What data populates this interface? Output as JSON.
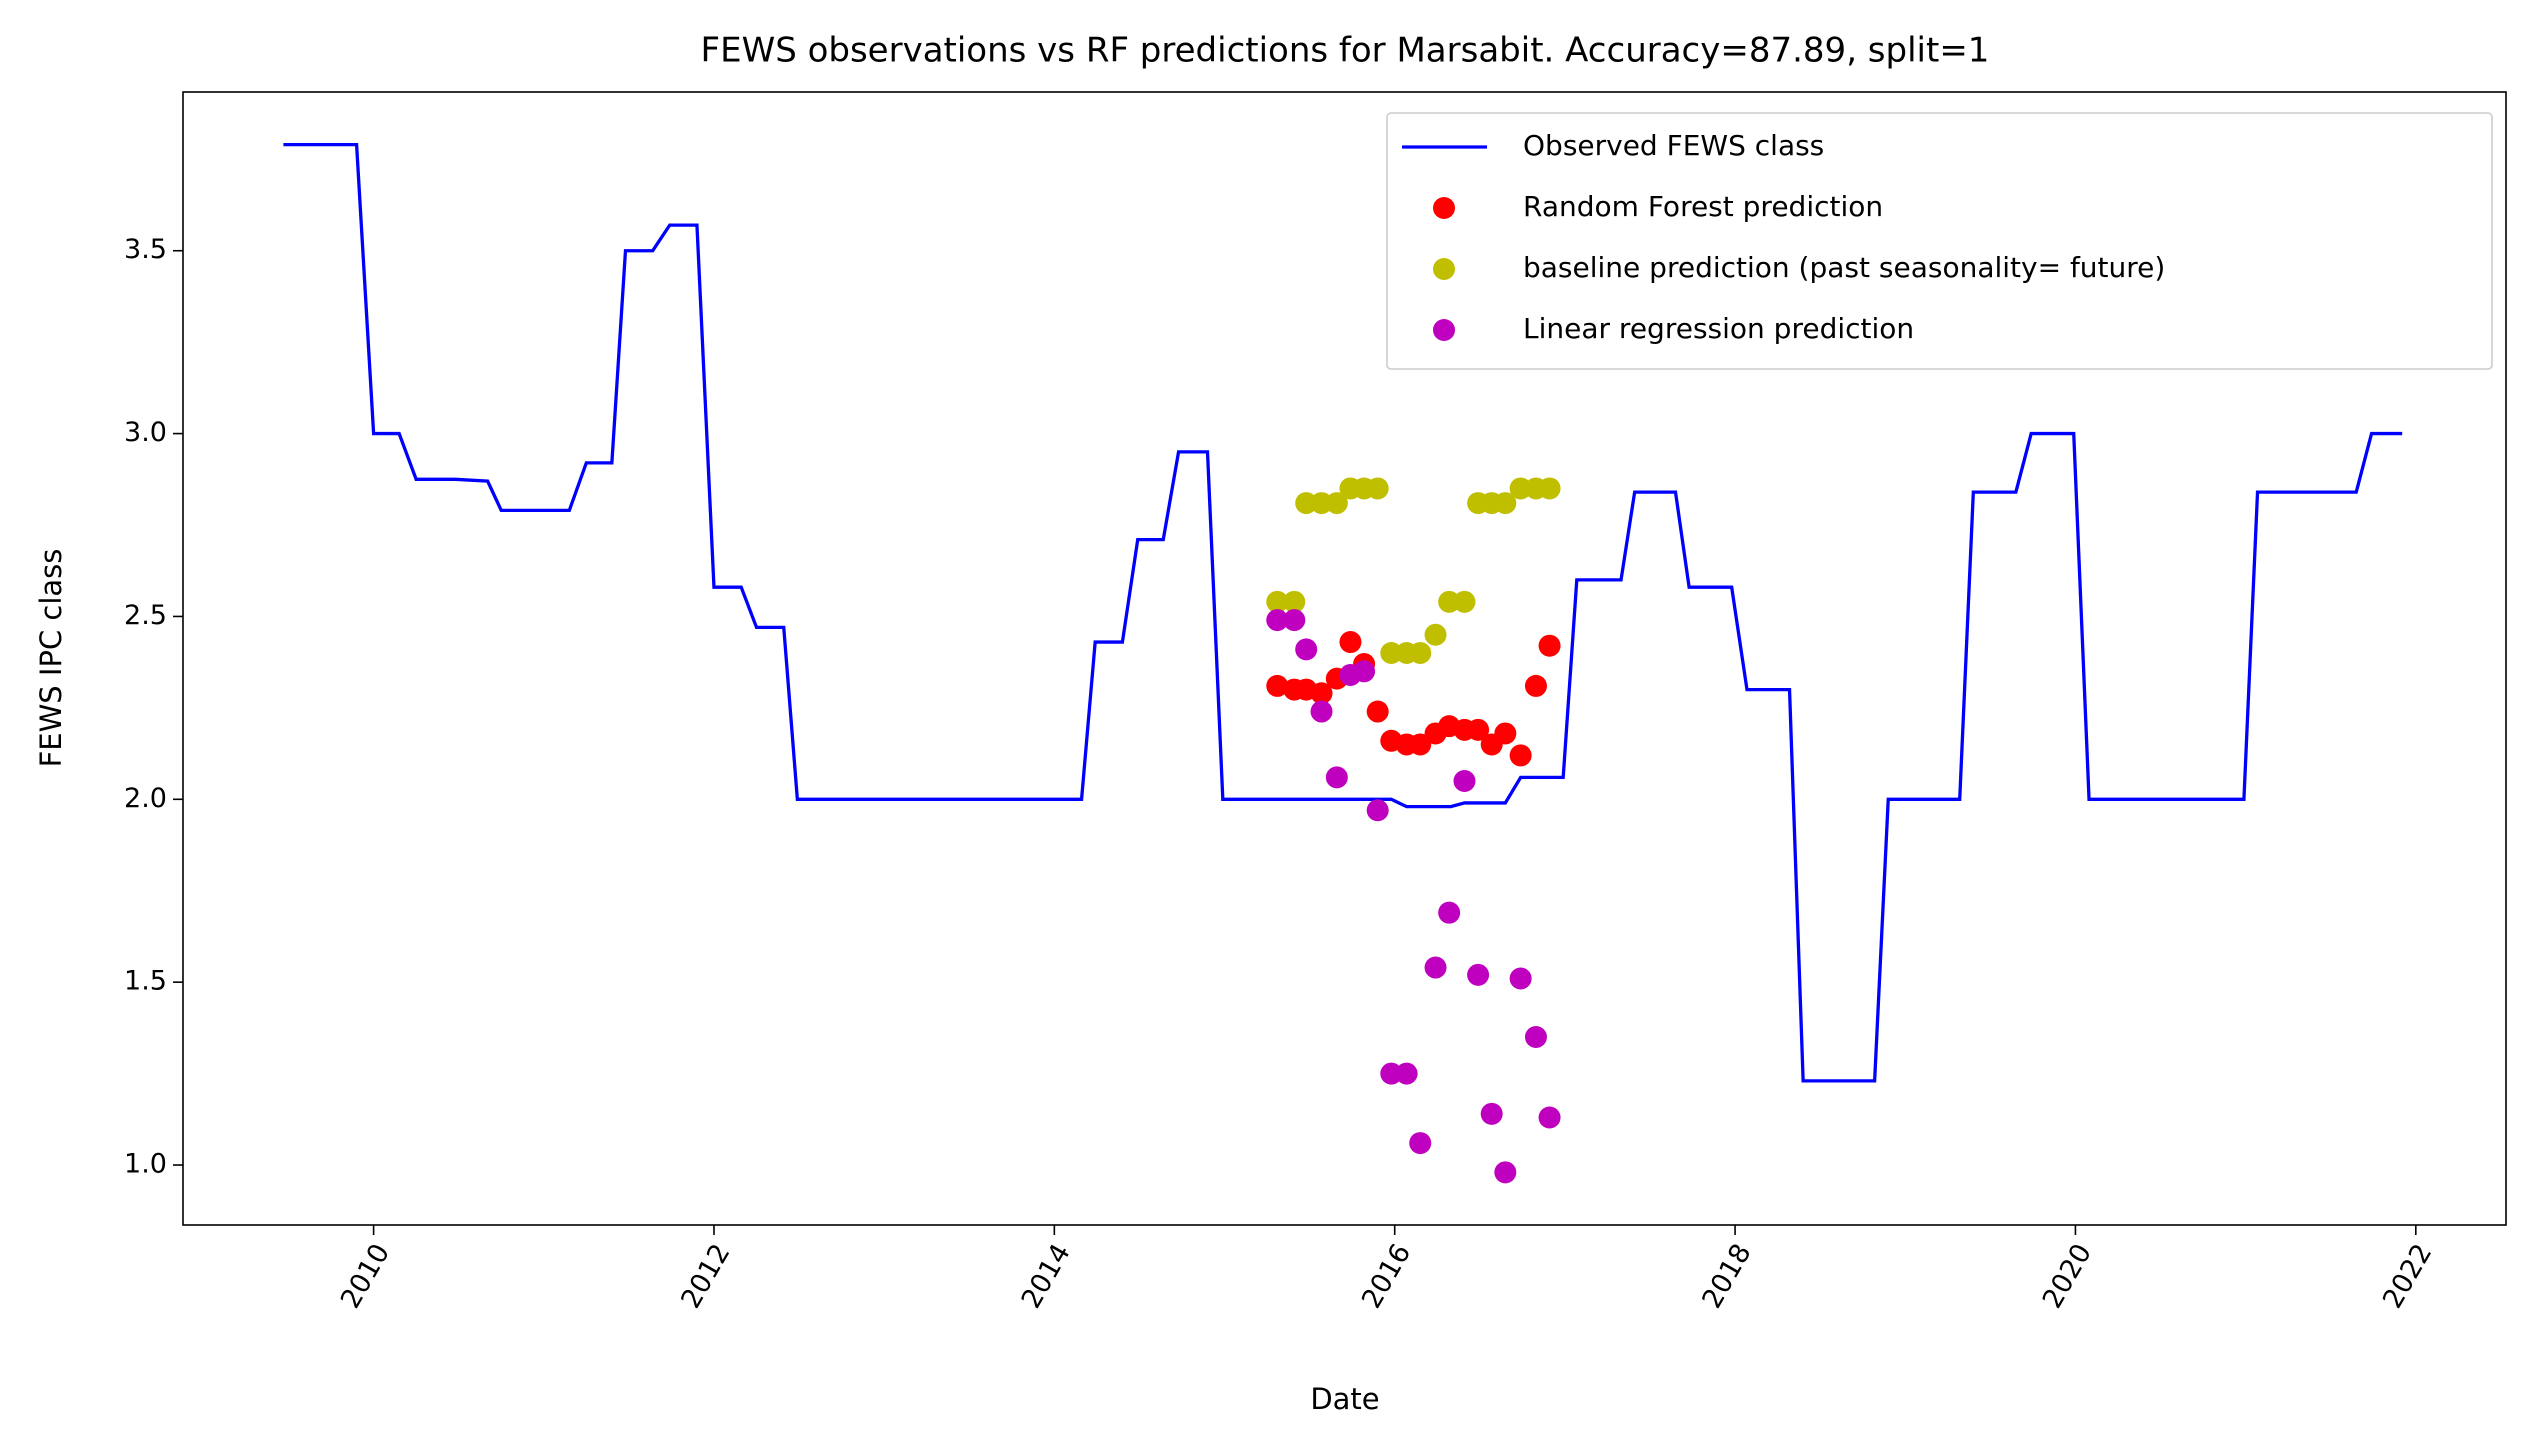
{
  "chart_data": {
    "type": "line",
    "title": "FEWS observations vs RF predictions for Marsabit. Accuracy=87.89, split=1",
    "x_label": "Date",
    "y_label": "FEWS IPC class",
    "xlim": [
      2008.88,
      2022.53
    ],
    "xticks": [
      2010,
      2012,
      2014,
      2016,
      2018,
      2020,
      2022
    ],
    "ylim": [
      0.836,
      3.934
    ],
    "yticks": [
      {
        "value": 1,
        "label": "1.0"
      },
      1.5,
      {
        "value": 2,
        "label": "2.0"
      },
      2.5,
      {
        "value": 3,
        "label": "3.0"
      },
      3.5
    ],
    "grid": false,
    "legend": "upper right",
    "series": [
      {
        "name": "Observed FEWS class",
        "color": "#0000ff",
        "type": "line",
        "x": [
          2009.47,
          2009.9,
          2010.0,
          2010.15,
          2010.25,
          2010.48,
          2010.67,
          2010.75,
          2010.95,
          2011.15,
          2011.25,
          2011.4,
          2011.48,
          2011.64,
          2011.74,
          2011.9,
          2012.0,
          2012.16,
          2012.25,
          2012.41,
          2012.49,
          2014.16,
          2014.24,
          2014.4,
          2014.49,
          2014.64,
          2014.73,
          2014.9,
          2014.99,
          2015.41,
          2015.98,
          2016.07,
          2016.33,
          2016.41,
          2016.65,
          2016.74,
          2016.99,
          2017.07,
          2017.33,
          2017.41,
          2017.65,
          2017.73,
          2017.98,
          2018.07,
          2018.32,
          2018.4,
          2018.82,
          2018.9,
          2019.32,
          2019.4,
          2019.65,
          2019.74,
          2019.99,
          2020.08,
          2020.99,
          2021.07,
          2021.65,
          2021.74,
          2021.92
        ],
        "values": [
          3.79,
          3.79,
          3.0,
          3.0,
          2.875,
          2.875,
          2.87,
          2.79,
          2.79,
          2.79,
          2.92,
          2.92,
          3.5,
          3.5,
          3.57,
          3.57,
          2.58,
          2.58,
          2.47,
          2.47,
          2.0,
          2.0,
          2.43,
          2.43,
          2.71,
          2.71,
          2.95,
          2.95,
          2.0,
          2.0,
          2.0,
          1.98,
          1.98,
          1.99,
          1.99,
          2.06,
          2.06,
          2.6,
          2.6,
          2.84,
          2.84,
          2.58,
          2.58,
          2.3,
          2.3,
          1.23,
          1.23,
          2.0,
          2.0,
          2.84,
          2.84,
          3.0,
          3.0,
          2.0,
          2.0,
          2.84,
          2.84,
          3.0,
          3.0
        ]
      },
      {
        "name": "Random Forest prediction",
        "color": "#ff0000",
        "type": "scatter",
        "x": [
          2015.31,
          2015.41,
          2015.48,
          2015.57,
          2015.66,
          2015.74,
          2015.82,
          2015.9,
          2015.98,
          2016.07,
          2016.15,
          2016.24,
          2016.32,
          2016.41,
          2016.49,
          2016.57,
          2016.65,
          2016.74,
          2016.83,
          2016.91
        ],
        "values": [
          2.31,
          2.3,
          2.3,
          2.29,
          2.33,
          2.43,
          2.37,
          2.24,
          2.16,
          2.15,
          2.15,
          2.18,
          2.2,
          2.19,
          2.19,
          2.15,
          2.18,
          2.12,
          2.31,
          2.42
        ]
      },
      {
        "name": "baseline prediction (past seasonality= future)",
        "color": "#bfbf00",
        "type": "scatter",
        "x": [
          2015.31,
          2015.41,
          2015.48,
          2015.57,
          2015.66,
          2015.74,
          2015.82,
          2015.9,
          2015.98,
          2016.07,
          2016.15,
          2016.24,
          2016.32,
          2016.41,
          2016.49,
          2016.57,
          2016.65,
          2016.74,
          2016.83,
          2016.91
        ],
        "values": [
          2.54,
          2.54,
          2.81,
          2.81,
          2.81,
          2.85,
          2.85,
          2.85,
          2.4,
          2.4,
          2.4,
          2.45,
          2.54,
          2.54,
          2.81,
          2.81,
          2.81,
          2.85,
          2.85,
          2.85
        ]
      },
      {
        "name": "Linear regression prediction",
        "color": "#bf00bf",
        "type": "scatter",
        "x": [
          2015.31,
          2015.41,
          2015.48,
          2015.57,
          2015.66,
          2015.74,
          2015.82,
          2015.9,
          2015.98,
          2016.07,
          2016.15,
          2016.24,
          2016.32,
          2016.41,
          2016.49,
          2016.57,
          2016.65,
          2016.74,
          2016.83,
          2016.91
        ],
        "values": [
          2.49,
          2.49,
          2.41,
          2.24,
          2.06,
          2.34,
          2.35,
          1.97,
          1.25,
          1.25,
          1.06,
          1.54,
          1.69,
          2.05,
          1.52,
          1.14,
          0.98,
          1.51,
          1.35,
          1.13
        ]
      }
    ]
  }
}
